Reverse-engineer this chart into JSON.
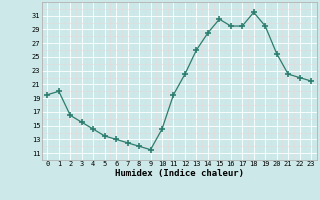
{
  "x": [
    0,
    1,
    2,
    3,
    4,
    5,
    6,
    7,
    8,
    9,
    10,
    11,
    12,
    13,
    14,
    15,
    16,
    17,
    18,
    19,
    20,
    21,
    22,
    23
  ],
  "y": [
    19.5,
    20.0,
    16.5,
    15.5,
    14.5,
    13.5,
    13.0,
    12.5,
    12.0,
    11.5,
    14.5,
    19.5,
    22.5,
    26.0,
    28.5,
    30.5,
    29.5,
    29.5,
    31.5,
    29.5,
    25.5,
    22.5,
    22.0,
    21.5
  ],
  "xlabel": "Humidex (Indice chaleur)",
  "ylim": [
    10,
    33
  ],
  "xlim": [
    -0.5,
    23.5
  ],
  "yticks": [
    11,
    13,
    15,
    17,
    19,
    21,
    23,
    25,
    27,
    29,
    31
  ],
  "xticks": [
    0,
    1,
    2,
    3,
    4,
    5,
    6,
    7,
    8,
    9,
    10,
    11,
    12,
    13,
    14,
    15,
    16,
    17,
    18,
    19,
    20,
    21,
    22,
    23
  ],
  "line_color": "#2d7d6e",
  "bg_color": "#cce8e8",
  "grid_color": "#ffffff",
  "grid_minor_color": "#e8d8d8",
  "marker": "+",
  "marker_size": 4,
  "tick_fontsize": 5.0,
  "xlabel_fontsize": 6.5
}
